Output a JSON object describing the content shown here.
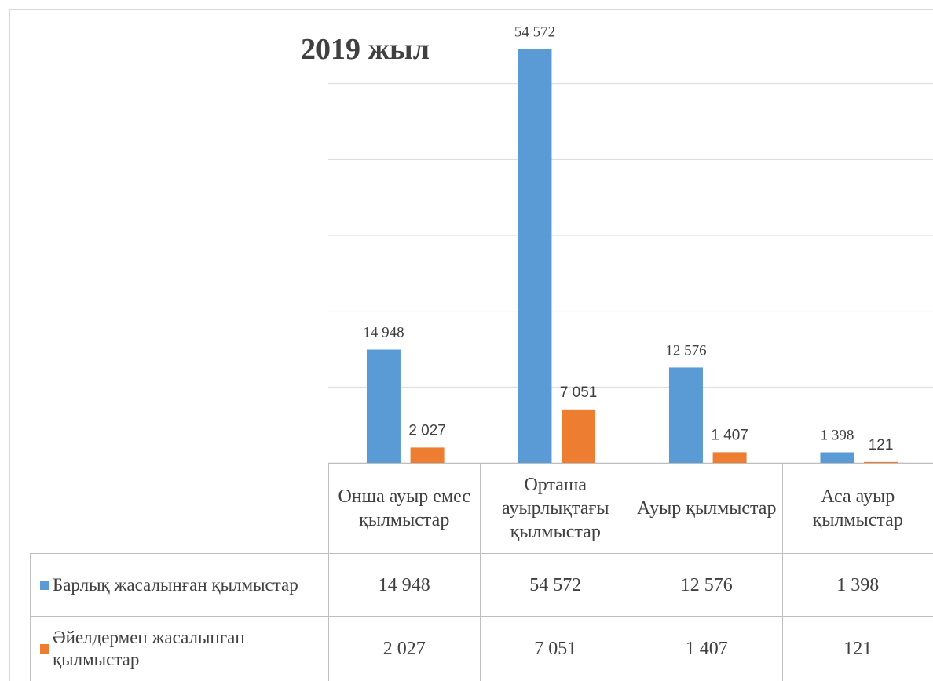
{
  "chart_data": {
    "type": "bar",
    "title": "2019 жыл",
    "categories": [
      "Онша ауыр емес қылмыстар",
      "Орташа ауырлықтағы қылмыстар",
      "Ауыр қылмыстар",
      "Аса ауыр қылмыстар"
    ],
    "series": [
      {
        "name": "Барлық жасалынған қылмыстар",
        "color": "#5b9bd5",
        "values": [
          14948,
          54572,
          12576,
          1398
        ],
        "value_labels": [
          "14 948",
          "54 572",
          "12 576",
          "1 398"
        ]
      },
      {
        "name": "Әйелдермен жасалынған қылмыстар",
        "color": "#ed7d31",
        "values": [
          2027,
          7051,
          1407,
          121
        ],
        "value_labels": [
          "2 027",
          "7 051",
          "1 407",
          "121"
        ]
      }
    ],
    "ylim": [
      0,
      60000
    ],
    "yticks": [
      0,
      10000,
      20000,
      30000,
      40000,
      50000
    ],
    "grid": true
  }
}
